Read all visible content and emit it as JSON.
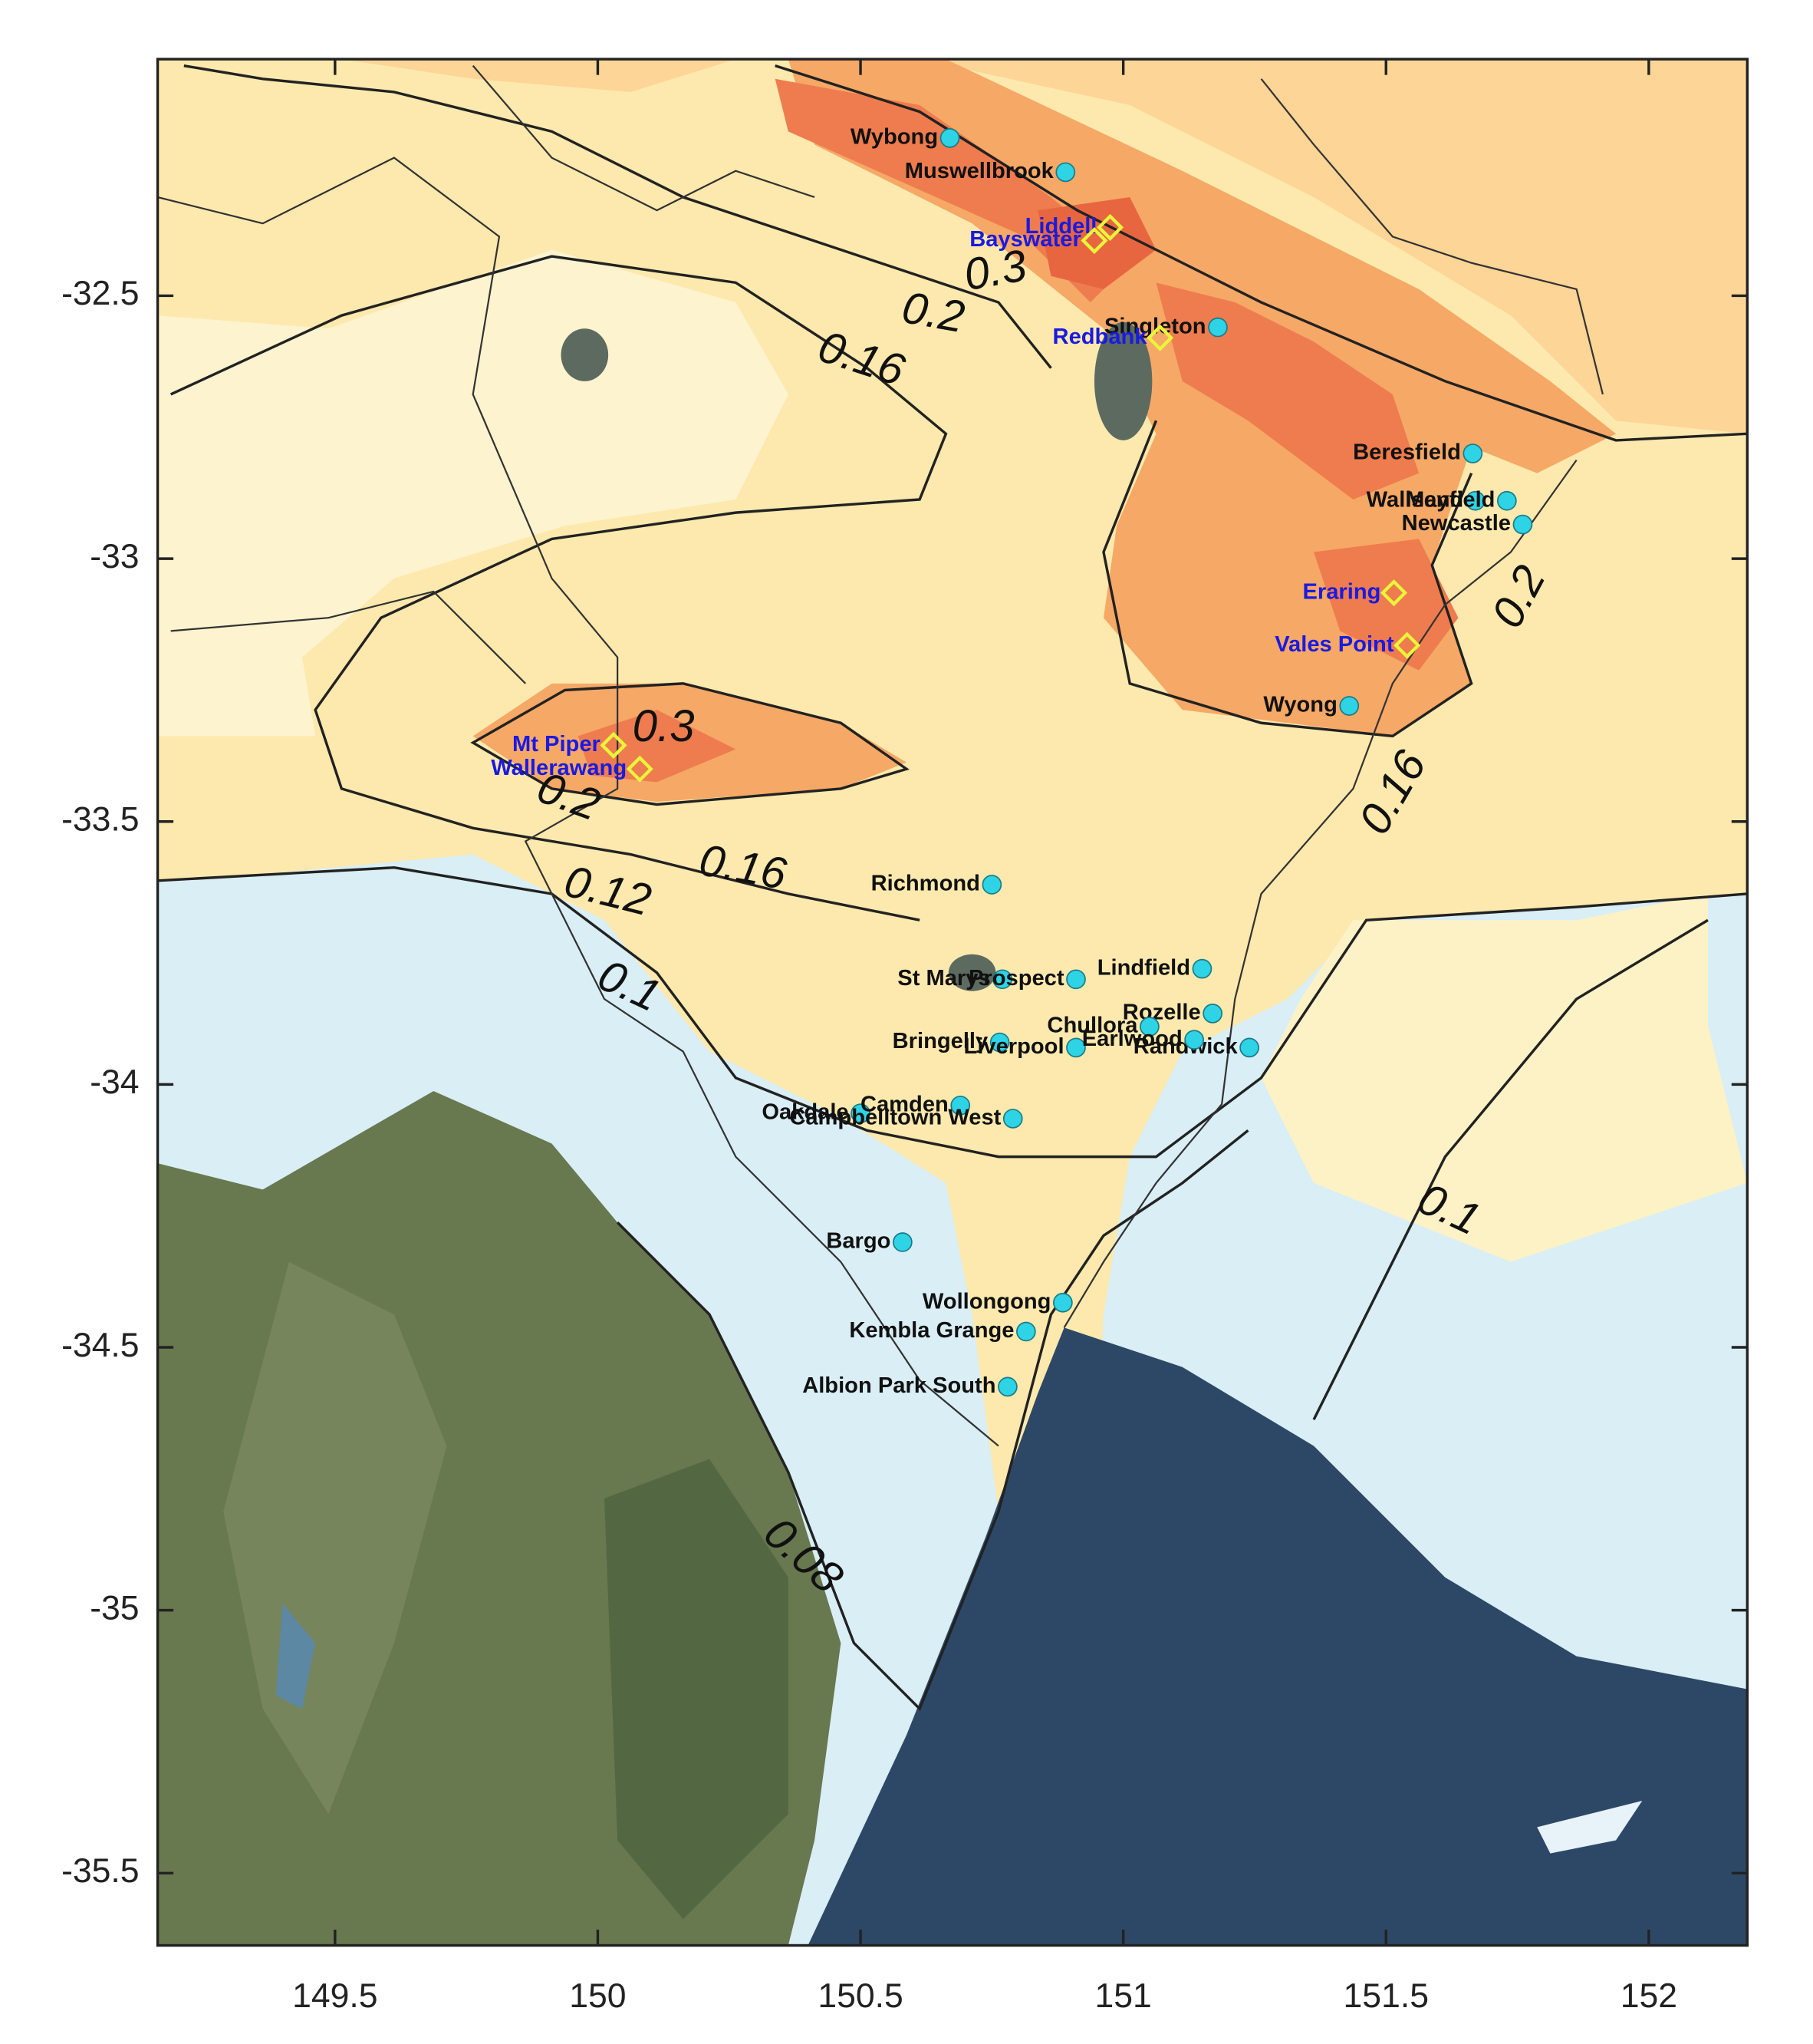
{
  "map": {
    "xlim": [
      149.1625,
      152.1875
    ],
    "ylim": [
      -35.6375,
      -32.05
    ],
    "xticks": [
      149.5,
      150,
      150.5,
      151,
      151.5,
      152
    ],
    "yticks": [
      -32.5,
      -33,
      -33.5,
      -34,
      -34.5,
      -35,
      -35.5
    ],
    "contour_labels": [
      0.3,
      0.2,
      0.16,
      0.3,
      0.2,
      0.16,
      0.12,
      0.1,
      0.2,
      0.16,
      0.1,
      0.08
    ],
    "stations": [
      {
        "name": "Wybong",
        "lon": 150.67,
        "lat": -32.2
      },
      {
        "name": "Muswellbrook",
        "lon": 150.89,
        "lat": -32.265
      },
      {
        "name": "Singleton",
        "lon": 151.18,
        "lat": -32.56
      },
      {
        "name": "Beresfield",
        "lon": 151.665,
        "lat": -32.8
      },
      {
        "name": "Wallsend",
        "lon": 151.67,
        "lat": -32.89
      },
      {
        "name": "Mayfield",
        "lon": 151.73,
        "lat": -32.89
      },
      {
        "name": "Newcastle",
        "lon": 151.76,
        "lat": -32.935
      },
      {
        "name": "Wyong",
        "lon": 151.43,
        "lat": -33.28
      },
      {
        "name": "Richmond",
        "lon": 150.75,
        "lat": -33.62
      },
      {
        "name": "St Marys",
        "lon": 150.77,
        "lat": -33.8
      },
      {
        "name": "Prospect",
        "lon": 150.91,
        "lat": -33.8
      },
      {
        "name": "Lindfield",
        "lon": 151.15,
        "lat": -33.78
      },
      {
        "name": "Rozelle",
        "lon": 151.17,
        "lat": -33.865
      },
      {
        "name": "Chullora",
        "lon": 151.05,
        "lat": -33.89
      },
      {
        "name": "Bringelly",
        "lon": 150.765,
        "lat": -33.92
      },
      {
        "name": "Liverpool",
        "lon": 150.91,
        "lat": -33.93
      },
      {
        "name": "Randwick",
        "lon": 151.24,
        "lat": -33.93
      },
      {
        "name": "Earlwood",
        "lon": 151.135,
        "lat": -33.915
      },
      {
        "name": "Oakdale",
        "lon": 150.5,
        "lat": -34.055
      },
      {
        "name": "Camden",
        "lon": 150.69,
        "lat": -34.04
      },
      {
        "name": "Campbelltown West",
        "lon": 150.79,
        "lat": -34.065
      },
      {
        "name": "Bargo",
        "lon": 150.58,
        "lat": -34.3
      },
      {
        "name": "Wollongong",
        "lon": 150.885,
        "lat": -34.415
      },
      {
        "name": "Kembla Grange",
        "lon": 150.815,
        "lat": -34.47
      },
      {
        "name": "Albion Park South",
        "lon": 150.78,
        "lat": -34.575
      }
    ],
    "power_stations": [
      {
        "name": "Liddell",
        "lon": 150.975,
        "lat": -32.37
      },
      {
        "name": "Bayswater",
        "lon": 150.945,
        "lat": -32.395
      },
      {
        "name": "Redbank",
        "lon": 151.07,
        "lat": -32.58
      },
      {
        "name": "Eraring",
        "lon": 151.515,
        "lat": -33.065
      },
      {
        "name": "Vales Point",
        "lon": 151.54,
        "lat": -33.165
      },
      {
        "name": "Mt Piper",
        "lon": 150.03,
        "lat": -33.355
      },
      {
        "name": "Wallerawang",
        "lon": 150.08,
        "lat": -33.4
      }
    ]
  }
}
